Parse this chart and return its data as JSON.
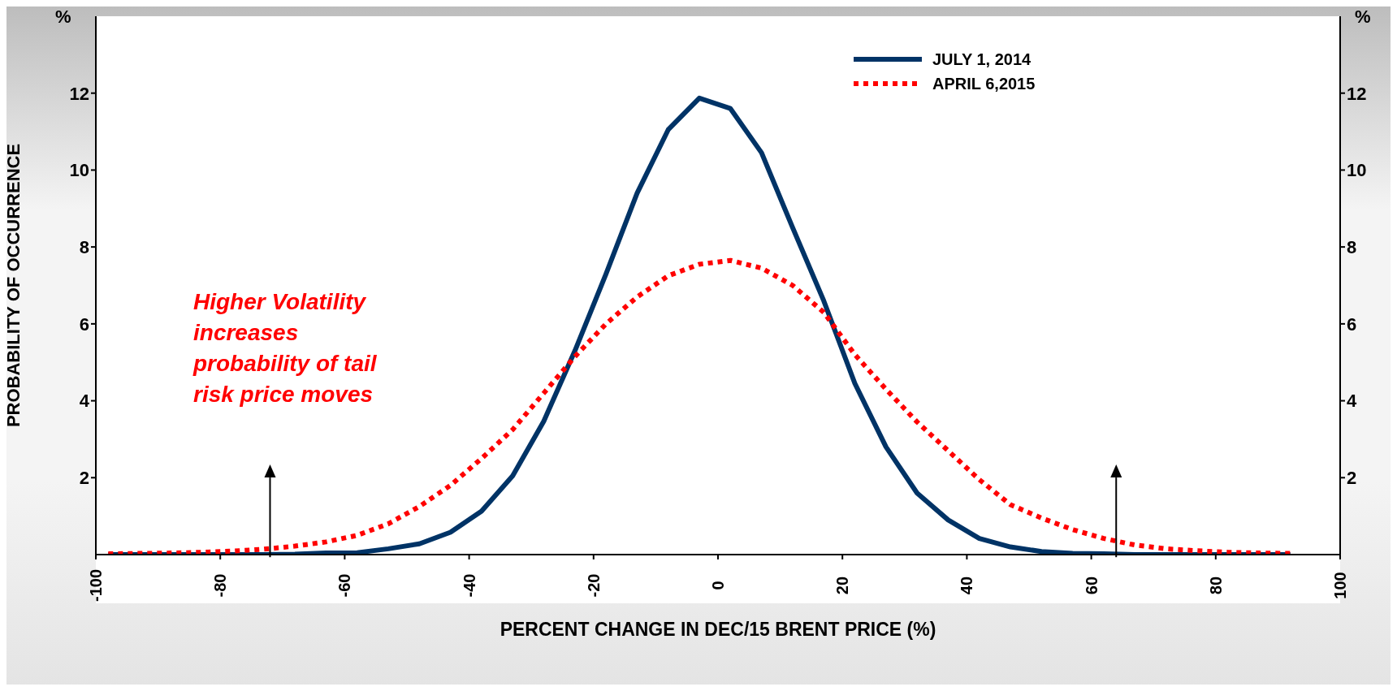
{
  "chart_data": {
    "type": "line",
    "xlabel": "PERCENT CHANGE IN DEC/15 BRENT PRICE (%)",
    "ylabel": "PROBABILITY OF OCCURRENCE",
    "annotations": [
      "%",
      "%",
      "Higher Volatility\nincreases\nprobability of tail\nrisk price moves"
    ],
    "x": [
      -98,
      -93,
      -88,
      -83,
      -78,
      -73,
      -68,
      -63,
      -58,
      -53,
      -48,
      -43,
      -38,
      -33,
      -28,
      -23,
      -18,
      -13,
      -8,
      -3,
      2,
      7,
      12,
      17,
      22,
      27,
      32,
      37,
      42,
      47,
      52,
      57,
      62,
      67,
      72,
      77,
      82,
      87,
      92
    ],
    "series": [
      {
        "name": "JULY 1, 2014",
        "color": "#003366",
        "line_style": "solid",
        "values": [
          0,
          0,
          0,
          0,
          0,
          0,
          0.01,
          0.04,
          0.05,
          0.15,
          0.28,
          0.58,
          1.13,
          2.05,
          3.47,
          5.3,
          7.3,
          9.4,
          11.05,
          11.87,
          11.6,
          10.45,
          8.5,
          6.6,
          4.45,
          2.8,
          1.6,
          0.9,
          0.42,
          0.2,
          0.08,
          0.03,
          0.02,
          0,
          0,
          0,
          0,
          0,
          0
        ]
      },
      {
        "name": "APRIL 6,2015",
        "color": "#ff0000",
        "line_style": "dotted",
        "values": [
          0.02,
          0.03,
          0.04,
          0.06,
          0.09,
          0.14,
          0.22,
          0.33,
          0.5,
          0.8,
          1.25,
          1.8,
          2.5,
          3.25,
          4.2,
          5.15,
          6.0,
          6.7,
          7.25,
          7.55,
          7.65,
          7.45,
          7.0,
          6.3,
          5.2,
          4.3,
          3.45,
          2.7,
          1.95,
          1.3,
          0.95,
          0.65,
          0.42,
          0.25,
          0.15,
          0.1,
          0.06,
          0.04,
          0.03
        ]
      }
    ],
    "xlim": [
      -100,
      100
    ],
    "xticks": [
      -100,
      -80,
      -60,
      -40,
      -20,
      0,
      20,
      40,
      60,
      80,
      100
    ],
    "ylim": [
      0,
      14
    ],
    "yticks": [
      2,
      4,
      6,
      8,
      10,
      12
    ],
    "y2lim": [
      0,
      14
    ],
    "y2ticks": [
      2,
      4,
      6,
      8,
      10,
      12
    ],
    "legend": "top right",
    "marker": "none"
  }
}
